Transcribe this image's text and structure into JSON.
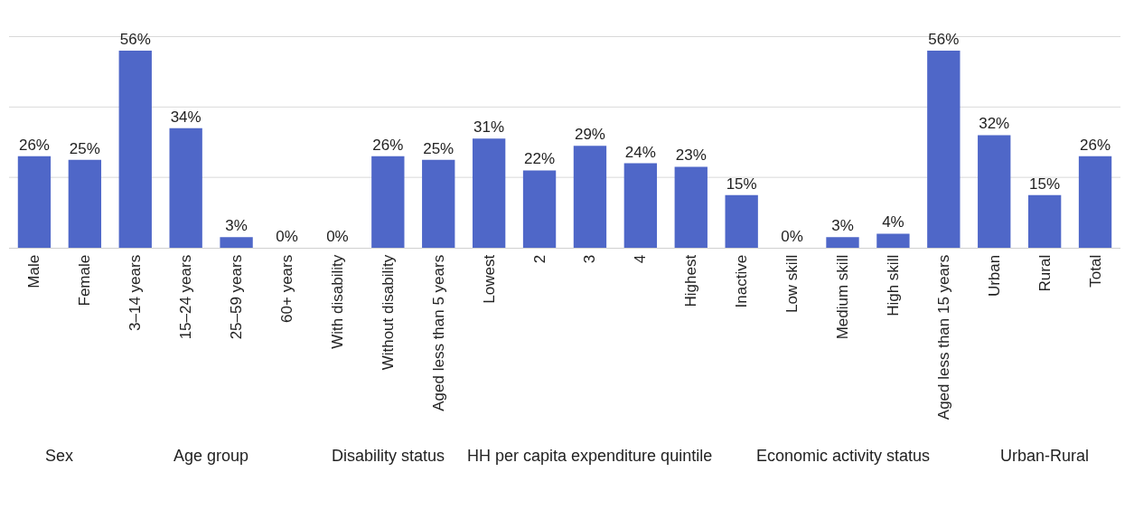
{
  "chart_data": {
    "type": "bar",
    "categories": [
      "Male",
      "Female",
      "3–14 years",
      "15–24 years",
      "25–59 years",
      "60+ years",
      "With disability",
      "Without disability",
      "Aged less than 5 years",
      "Lowest",
      "2",
      "3",
      "4",
      "Highest",
      "Inactive",
      "Low skill",
      "Medium skill",
      "High skill",
      "Aged less than 15 years",
      "Urban",
      "Rural",
      "Total"
    ],
    "values": [
      26,
      25,
      56,
      34,
      3,
      0,
      0,
      26,
      25,
      31,
      22,
      29,
      24,
      23,
      15,
      0,
      3,
      4,
      56,
      32,
      15,
      26
    ],
    "value_labels": [
      "26%",
      "25%",
      "56%",
      "34%",
      "3%",
      "0%",
      "0%",
      "26%",
      "25%",
      "31%",
      "22%",
      "29%",
      "24%",
      "23%",
      "15%",
      "0%",
      "3%",
      "4%",
      "56%",
      "32%",
      "15%",
      "26%"
    ],
    "color": "#4f67c8",
    "ref_lines": [
      {
        "axis": "y",
        "value": 20,
        "color": "#d9d9d9"
      },
      {
        "axis": "y",
        "value": 40,
        "color": "#d9d9d9"
      },
      {
        "axis": "y",
        "value": 60,
        "color": "#d9d9d9"
      }
    ],
    "tick_labels": "x",
    "legend": false,
    "annotations": [
      "Sex",
      "Age group",
      "Disability status",
      "HH per capita expenditure quintile",
      "Economic activity status",
      "Urban-Rural"
    ]
  }
}
